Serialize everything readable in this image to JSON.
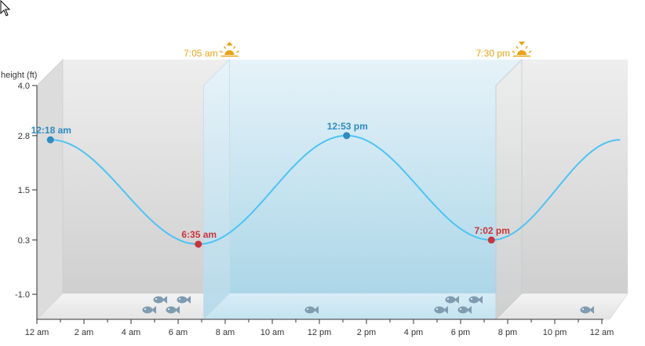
{
  "chart_data": {
    "type": "line",
    "ylabel": "height (ft)",
    "y_ticks": [
      "4.0",
      "2.8",
      "1.5",
      "0.3",
      "-1.0"
    ],
    "y_tick_values": [
      4.0,
      2.8,
      1.5,
      0.3,
      -1.0
    ],
    "ylim": [
      -1.6,
      4.0
    ],
    "x_range_hours": [
      0,
      24
    ],
    "x_ticks": [
      "12 am",
      "2 am",
      "4 am",
      "6 am",
      "8 am",
      "10 am",
      "12 pm",
      "2 pm",
      "4 pm",
      "6 pm",
      "8 pm",
      "10 pm",
      "12 am"
    ],
    "x_tick_hours": [
      0,
      2,
      4,
      6,
      8,
      10,
      12,
      14,
      16,
      18,
      20,
      22,
      24
    ],
    "extremes": [
      {
        "label": "12:18 am",
        "hour": 0.3,
        "height": 2.7,
        "kind": "high"
      },
      {
        "label": "6:35 am",
        "hour": 6.583,
        "height": 0.2,
        "kind": "low"
      },
      {
        "label": "12:53 pm",
        "hour": 12.883,
        "height": 2.8,
        "kind": "high"
      },
      {
        "label": "7:02 pm",
        "hour": 19.033,
        "height": 0.3,
        "kind": "low"
      }
    ],
    "curve_end": {
      "hour": 24.5,
      "height": 2.7
    },
    "sunrise": {
      "label": "7:05 am",
      "hour": 7.083
    },
    "sunset": {
      "label": "7:30 pm",
      "hour": 19.5
    },
    "fish_activity": [
      {
        "hour": 5.5,
        "count": 4
      },
      {
        "hour": 11.6,
        "count": 1
      },
      {
        "hour": 17.9,
        "count": 4
      },
      {
        "hour": 23.3,
        "count": 1
      }
    ],
    "colors": {
      "curve": "#4dc3f5",
      "high": "#2e8bc0",
      "low": "#c8343b",
      "sun": "#e8a317",
      "fish": "#7f9cb0",
      "day": "#b8dcec",
      "night": "#d6d6d6"
    }
  }
}
